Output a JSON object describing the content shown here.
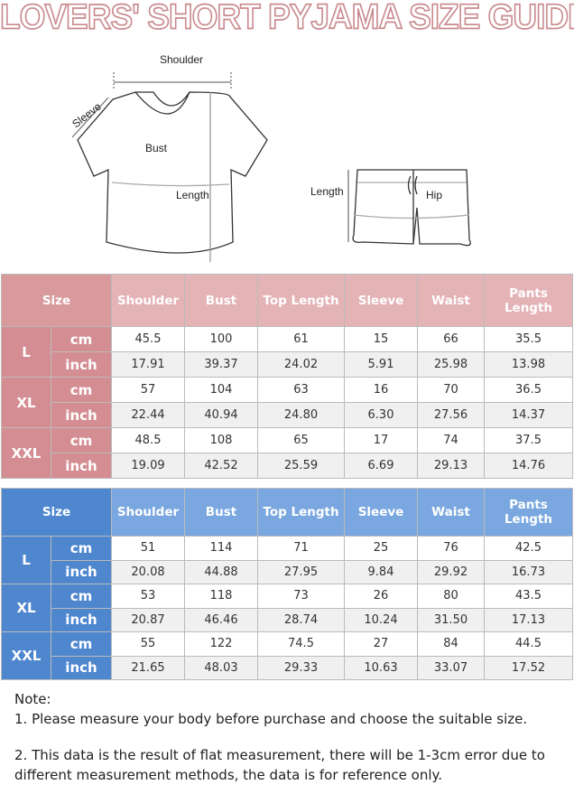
{
  "title": "LOVERS'  SHORT PYJAMA SIZE GUIDE",
  "diagram": {
    "top_labels": {
      "shoulder": "Shoulder",
      "sleeve": "Sleeve",
      "bust": "Bust",
      "length": "Length"
    },
    "shorts_labels": {
      "length": "Length",
      "hip": "Hip"
    }
  },
  "columns": [
    "Size",
    "Shoulder",
    "Bust",
    "Top Length",
    "Sleeve",
    "Waist",
    "Pants Length"
  ],
  "colors": {
    "pink_header": "#e4b3b6",
    "pink_size": "#d48e93",
    "blue_header": "#7aa7df",
    "blue_size": "#4f87cf",
    "title_outline": "#c98a8e"
  },
  "tables": [
    {
      "name": "pink",
      "rows": [
        {
          "size": "L",
          "cm": [
            "45.5",
            "100",
            "61",
            "15",
            "66",
            "35.5"
          ],
          "inch": [
            "17.91",
            "39.37",
            "24.02",
            "5.91",
            "25.98",
            "13.98"
          ]
        },
        {
          "size": "XL",
          "cm": [
            "57",
            "104",
            "63",
            "16",
            "70",
            "36.5"
          ],
          "inch": [
            "22.44",
            "40.94",
            "24.80",
            "6.30",
            "27.56",
            "14.37"
          ]
        },
        {
          "size": "XXL",
          "cm": [
            "48.5",
            "108",
            "65",
            "17",
            "74",
            "37.5"
          ],
          "inch": [
            "19.09",
            "42.52",
            "25.59",
            "6.69",
            "29.13",
            "14.76"
          ]
        }
      ]
    },
    {
      "name": "blue",
      "rows": [
        {
          "size": "L",
          "cm": [
            "51",
            "114",
            "71",
            "25",
            "76",
            "42.5"
          ],
          "inch": [
            "20.08",
            "44.88",
            "27.95",
            "9.84",
            "29.92",
            "16.73"
          ]
        },
        {
          "size": "XL",
          "cm": [
            "53",
            "118",
            "73",
            "26",
            "80",
            "43.5"
          ],
          "inch": [
            "20.87",
            "46.46",
            "28.74",
            "10.24",
            "31.50",
            "17.13"
          ]
        },
        {
          "size": "XXL",
          "cm": [
            "55",
            "122",
            "74.5",
            "27",
            "84",
            "44.5"
          ],
          "inch": [
            "21.65",
            "48.03",
            "29.33",
            "10.63",
            "33.07",
            "17.52"
          ]
        }
      ]
    }
  ],
  "units": {
    "cm": "cm",
    "inch": "inch"
  },
  "notes": {
    "heading": "Note:",
    "items": [
      "1. Please measure your body before purchase and choose the suitable size.",
      "2. This data is the result of flat measurement, there will be 1-3cm error due to different measurement methods, the data is for reference only."
    ]
  }
}
